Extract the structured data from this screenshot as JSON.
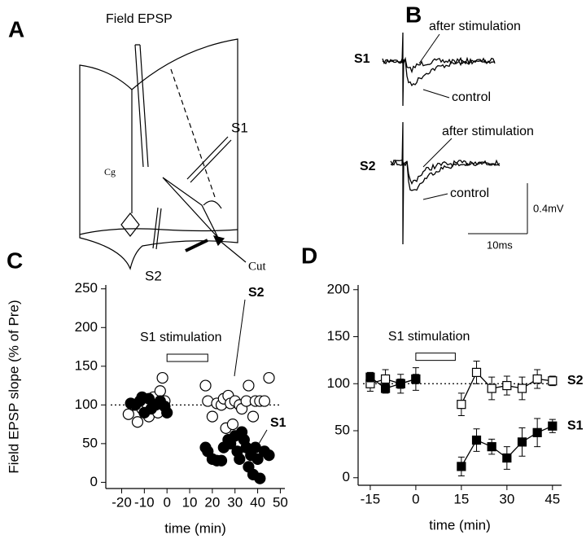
{
  "panel_labels": {
    "a": "A",
    "b": "B",
    "c": "C",
    "d": "D"
  },
  "diagram": {
    "electrode": "Field EPSP",
    "s1": "S1",
    "cg": "Cg",
    "s2": "S2",
    "cut": "Cut"
  },
  "traces": {
    "s1": "S1",
    "s2": "S2",
    "after_1": "after stimulation",
    "control_1": "control",
    "after_2": "after stimulation",
    "control_2": "control",
    "scale_v": "0.4mV",
    "scale_t": "10ms"
  },
  "chart_data": [
    {
      "type": "scatter",
      "ylabel": "Field EPSP slope (% of Pre)",
      "xlabel": "time (min)",
      "xlim": [
        -27,
        52
      ],
      "xticks": [
        -20,
        -10,
        0,
        10,
        20,
        30,
        40,
        50
      ],
      "ylim": [
        -8,
        255
      ],
      "yticks": [
        0,
        50,
        100,
        150,
        200,
        250
      ],
      "reference_line": 100,
      "stimulation": {
        "label": "S1 stimulation",
        "x": [
          0,
          18
        ]
      },
      "series": [
        {
          "name": "S2",
          "marker": "open",
          "color": "#000000",
          "x": [
            -17,
            -15,
            -13,
            -11,
            -9,
            -8,
            -6,
            -5,
            -4,
            -3,
            -2,
            -1,
            17,
            18,
            20,
            22,
            24,
            25,
            26,
            27,
            28,
            29,
            30,
            32,
            33,
            35,
            36,
            38,
            39,
            41,
            43,
            45
          ],
          "values": [
            88,
            100,
            78,
            95,
            102,
            85,
            110,
            100,
            90,
            118,
            135,
            105,
            125,
            105,
            85,
            102,
            100,
            108,
            70,
            112,
            102,
            75,
            105,
            100,
            95,
            105,
            125,
            85,
            105,
            105,
            105,
            135
          ]
        },
        {
          "name": "S1",
          "marker": "filled",
          "color": "#000000",
          "x": [
            -16,
            -14,
            -12,
            -11,
            -10,
            -8,
            -7,
            -5,
            -3,
            -1,
            0,
            17,
            18,
            20,
            22,
            24,
            25,
            27,
            28,
            30,
            31,
            32,
            33,
            34,
            35,
            36,
            37,
            38,
            39,
            40,
            41,
            43,
            45
          ],
          "values": [
            102,
            100,
            105,
            110,
            90,
            108,
            95,
            100,
            105,
            98,
            90,
            45,
            40,
            30,
            28,
            28,
            45,
            55,
            50,
            60,
            40,
            30,
            65,
            55,
            45,
            20,
            35,
            10,
            45,
            30,
            5,
            40,
            35
          ]
        }
      ]
    },
    {
      "type": "line",
      "xlabel": "time (min)",
      "xlim": [
        -19,
        48
      ],
      "xticks": [
        -15,
        0,
        15,
        30,
        45
      ],
      "ylim": [
        -8,
        205
      ],
      "yticks": [
        0,
        50,
        100,
        150,
        200
      ],
      "reference_line": 100,
      "stimulation": {
        "label": "S1 stimulation",
        "x": [
          0,
          13
        ]
      },
      "series": [
        {
          "name": "S2",
          "marker": "open",
          "color": "#000000",
          "x": [
            -15,
            -10,
            -5,
            0,
            15,
            20,
            25,
            30,
            35,
            40,
            45
          ],
          "values": [
            100,
            105,
            100,
            105,
            78,
            112,
            95,
            98,
            95,
            105,
            103
          ],
          "errors": [
            8,
            10,
            10,
            12,
            12,
            12,
            12,
            10,
            12,
            10,
            5
          ]
        },
        {
          "name": "S1",
          "marker": "filled",
          "color": "#000000",
          "x": [
            -15,
            -10,
            -5,
            0,
            15,
            20,
            25,
            30,
            35,
            40,
            45
          ],
          "values": [
            107,
            95,
            100,
            105,
            12,
            40,
            33,
            21,
            38,
            48,
            55
          ],
          "errors": [
            5,
            5,
            5,
            5,
            10,
            12,
            8,
            12,
            15,
            15,
            7
          ]
        }
      ]
    }
  ]
}
